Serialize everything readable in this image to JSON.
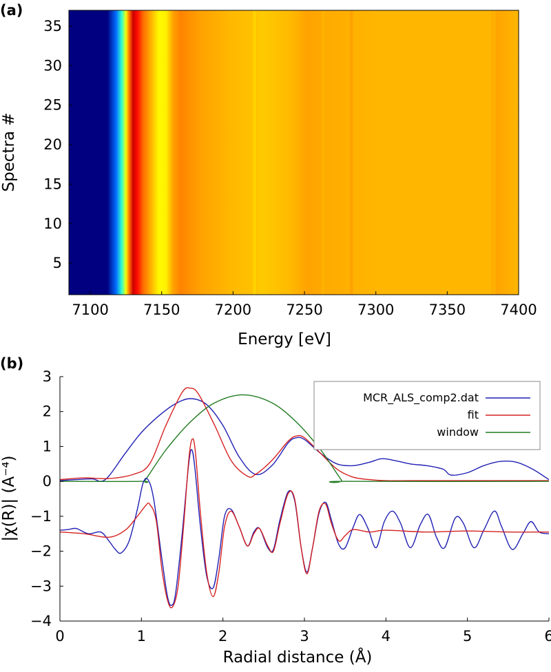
{
  "chart_data": [
    {
      "panel_label": "(a)",
      "type": "heatmap",
      "xlabel": "Energy [eV]",
      "ylabel": "Spectra #",
      "xlim": [
        7085,
        7400
      ],
      "ylim": [
        1,
        37
      ],
      "x_ticks": [
        7100,
        7150,
        7200,
        7250,
        7300,
        7350,
        7400
      ],
      "y_ticks": [
        5,
        10,
        15,
        20,
        25,
        30,
        35
      ],
      "colormap": "jet",
      "value_range": [
        0,
        1.3
      ],
      "energy_profile": [
        {
          "x": 7085,
          "v": 0.0
        },
        {
          "x": 7112,
          "v": 0.0
        },
        {
          "x": 7118,
          "v": 0.3
        },
        {
          "x": 7122,
          "v": 0.55
        },
        {
          "x": 7125,
          "v": 0.8
        },
        {
          "x": 7127,
          "v": 0.97
        },
        {
          "x": 7130,
          "v": 1.2
        },
        {
          "x": 7133,
          "v": 1.12
        },
        {
          "x": 7137,
          "v": 1.0
        },
        {
          "x": 7142,
          "v": 0.92
        },
        {
          "x": 7148,
          "v": 0.82
        },
        {
          "x": 7153,
          "v": 0.83
        },
        {
          "x": 7158,
          "v": 0.93
        },
        {
          "x": 7163,
          "v": 0.97
        },
        {
          "x": 7170,
          "v": 0.95
        },
        {
          "x": 7178,
          "v": 0.93
        },
        {
          "x": 7200,
          "v": 0.9
        },
        {
          "x": 7215,
          "v": 0.89
        },
        {
          "x": 7220,
          "v": 0.88
        },
        {
          "x": 7240,
          "v": 0.9
        },
        {
          "x": 7252,
          "v": 0.93
        },
        {
          "x": 7265,
          "v": 0.92
        },
        {
          "x": 7300,
          "v": 0.905
        },
        {
          "x": 7380,
          "v": 0.905
        },
        {
          "x": 7383,
          "v": 0.93
        },
        {
          "x": 7400,
          "v": 0.905
        }
      ]
    },
    {
      "panel_label": "(b)",
      "type": "line",
      "xlabel": "Radial distance (Å)",
      "ylabel": "|χ(R)| (A⁻⁴)",
      "xlim": [
        0,
        6
      ],
      "ylim": [
        -4,
        3
      ],
      "x_ticks": [
        0,
        1,
        2,
        3,
        4,
        5,
        6
      ],
      "y_ticks": [
        -4,
        -3,
        -2,
        -1,
        0,
        1,
        2,
        3
      ],
      "legend_position": "top-right",
      "series": [
        {
          "name": "MCR_ALS_comp2.dat",
          "color": "#1f1fb4",
          "role": "magnitude",
          "x": [
            0,
            0.2,
            0.4,
            0.5,
            0.6,
            0.8,
            1.0,
            1.2,
            1.4,
            1.6,
            1.8,
            2.0,
            2.2,
            2.4,
            2.6,
            2.8,
            2.9,
            3.0,
            3.2,
            3.4,
            3.6,
            3.8,
            3.95,
            4.1,
            4.3,
            4.5,
            4.7,
            4.8,
            5.0,
            5.2,
            5.4,
            5.6,
            5.8,
            6.0
          ],
          "y": [
            0.02,
            0.05,
            0.07,
            0.0,
            0.15,
            0.8,
            1.4,
            1.85,
            2.2,
            2.37,
            2.2,
            1.6,
            0.7,
            0.2,
            0.45,
            1.1,
            1.25,
            1.2,
            0.8,
            0.5,
            0.45,
            0.55,
            0.65,
            0.6,
            0.5,
            0.45,
            0.35,
            0.18,
            0.25,
            0.45,
            0.57,
            0.55,
            0.35,
            0.05
          ]
        },
        {
          "name": "fit",
          "color": "#d62020",
          "role": "magnitude",
          "x": [
            0,
            0.3,
            0.6,
            0.9,
            1.1,
            1.3,
            1.5,
            1.6,
            1.7,
            1.9,
            2.1,
            2.3,
            2.4,
            2.6,
            2.8,
            2.9,
            3.0,
            3.2,
            3.4,
            3.6,
            3.8,
            4.0,
            4.3,
            4.6,
            5.0,
            5.5,
            6.0
          ],
          "y": [
            0.05,
            0.1,
            0.08,
            0.2,
            0.5,
            1.6,
            2.55,
            2.67,
            2.5,
            1.6,
            0.6,
            0.15,
            0.2,
            0.6,
            1.15,
            1.3,
            1.25,
            0.8,
            0.35,
            0.12,
            0.05,
            0.02,
            0.02,
            0.02,
            0.02,
            0.02,
            0.02
          ]
        },
        {
          "name": "window",
          "color": "#1f7a1f",
          "role": "window",
          "x": [
            0,
            1.0,
            1.05,
            1.3,
            1.6,
            1.9,
            2.25,
            2.6,
            2.9,
            3.2,
            3.45,
            3.5,
            6.0
          ],
          "y": [
            0,
            0,
            0.05,
            0.9,
            1.7,
            2.25,
            2.48,
            2.25,
            1.7,
            0.9,
            0.05,
            0,
            0
          ]
        },
        {
          "name": "",
          "color": "#1f1fb4",
          "role": "real-part",
          "x": [
            0,
            0.1,
            0.2,
            0.35,
            0.5,
            0.6,
            0.68,
            0.75,
            0.85,
            0.95,
            1.02,
            1.08,
            1.15,
            1.25,
            1.32,
            1.37,
            1.42,
            1.5,
            1.58,
            1.62,
            1.66,
            1.72,
            1.8,
            1.88,
            1.95,
            2.02,
            2.1,
            2.2,
            2.3,
            2.38,
            2.45,
            2.55,
            2.62,
            2.7,
            2.8,
            2.88,
            2.96,
            3.03,
            3.1,
            3.18,
            3.26,
            3.33,
            3.42,
            3.5,
            3.6,
            3.68,
            3.78,
            3.88,
            3.98,
            4.08,
            4.18,
            4.3,
            4.42,
            4.52,
            4.62,
            4.72,
            4.85,
            4.95,
            5.08,
            5.2,
            5.33,
            5.42,
            5.55,
            5.68,
            5.78,
            5.88,
            6.0
          ],
          "y": [
            -1.4,
            -1.38,
            -1.35,
            -1.5,
            -1.45,
            -1.7,
            -1.95,
            -2.05,
            -1.7,
            -0.8,
            -0.05,
            0.05,
            -0.5,
            -2.2,
            -3.3,
            -3.55,
            -3.2,
            -1.5,
            0.5,
            0.9,
            0.3,
            -1.2,
            -2.7,
            -3.05,
            -2.2,
            -1.0,
            -0.8,
            -1.3,
            -1.85,
            -1.45,
            -1.35,
            -1.9,
            -1.95,
            -1.1,
            -0.3,
            -0.55,
            -1.9,
            -2.6,
            -1.9,
            -0.9,
            -0.6,
            -1.1,
            -1.8,
            -1.9,
            -1.3,
            -0.95,
            -1.35,
            -1.9,
            -1.15,
            -0.85,
            -1.2,
            -1.9,
            -1.25,
            -0.95,
            -1.6,
            -1.9,
            -1.05,
            -1.2,
            -1.9,
            -1.4,
            -0.85,
            -1.3,
            -1.95,
            -1.5,
            -1.15,
            -1.45,
            -1.5
          ]
        },
        {
          "name": "",
          "color": "#d62020",
          "role": "real-part",
          "x": [
            0,
            0.3,
            0.6,
            0.8,
            0.95,
            1.05,
            1.1,
            1.18,
            1.25,
            1.32,
            1.38,
            1.45,
            1.52,
            1.58,
            1.62,
            1.66,
            1.72,
            1.8,
            1.88,
            1.95,
            2.02,
            2.1,
            2.2,
            2.3,
            2.38,
            2.45,
            2.55,
            2.62,
            2.7,
            2.8,
            2.88,
            2.96,
            3.03,
            3.1,
            3.18,
            3.26,
            3.33,
            3.42,
            3.5,
            3.6,
            3.8,
            4.0,
            4.5,
            5.0,
            5.5,
            6.0
          ],
          "y": [
            -1.45,
            -1.5,
            -1.6,
            -1.4,
            -1.0,
            -0.7,
            -0.65,
            -1.1,
            -2.5,
            -3.4,
            -3.6,
            -3.0,
            -1.2,
            0.6,
            1.2,
            0.9,
            -0.8,
            -2.6,
            -3.3,
            -2.6,
            -1.3,
            -0.85,
            -1.3,
            -1.85,
            -1.5,
            -1.35,
            -1.85,
            -2.0,
            -1.2,
            -0.35,
            -0.5,
            -1.9,
            -2.65,
            -1.9,
            -0.85,
            -0.65,
            -1.2,
            -1.7,
            -1.55,
            -1.38,
            -1.45,
            -1.4,
            -1.45,
            -1.42,
            -1.45,
            -1.45
          ]
        }
      ]
    }
  ]
}
